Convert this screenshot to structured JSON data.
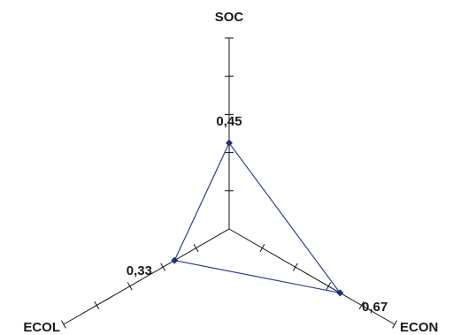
{
  "chart_data": {
    "type": "radar",
    "axes": [
      "SOC",
      "ECON",
      "ECOL"
    ],
    "values": [
      0.45,
      0.67,
      0.33
    ],
    "value_labels": [
      "0,45",
      "0,67",
      "0,33"
    ],
    "range": [
      0,
      1
    ],
    "ticks_per_axis": 5,
    "grid": false,
    "legend": "none",
    "colors": {
      "series_line": "#2e3f8f",
      "series_marker": "#1f2f7a",
      "axis": "#111111"
    }
  }
}
